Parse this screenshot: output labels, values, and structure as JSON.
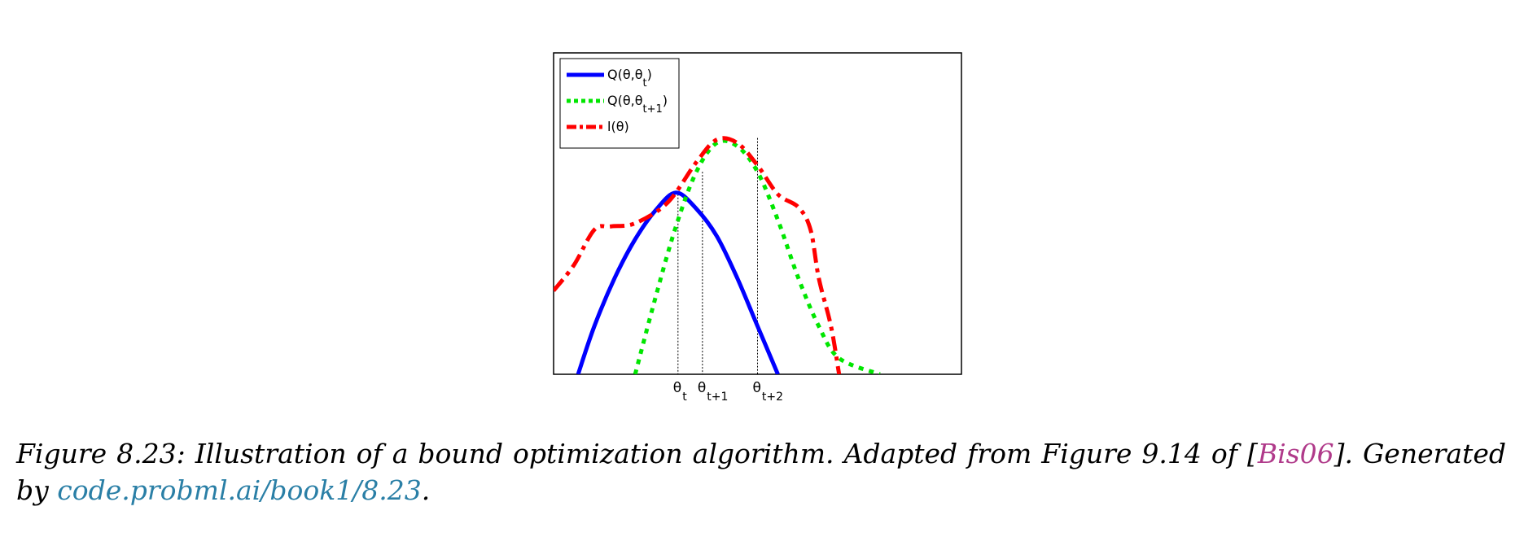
{
  "chart_data": {
    "type": "line",
    "xlabel": "",
    "ylabel": "",
    "xlim": [
      0,
      100
    ],
    "ylim": [
      0,
      100
    ],
    "grid": false,
    "legend": "top-left",
    "legend_entries": [
      {
        "series": "q_t",
        "base": "Q(θ,θ",
        "sub": "t",
        "close": ")",
        "color": "#0000ff",
        "dash": "solid"
      },
      {
        "series": "q_t1",
        "base": "Q(θ,θ",
        "sub": "t+1",
        "close": ")",
        "color": "#00e600",
        "dash": "dotted"
      },
      {
        "series": "l",
        "base": "l(θ)",
        "sub": "",
        "close": "",
        "color": "#ff0000",
        "dash": "dashdot"
      }
    ],
    "series": [
      {
        "key": "q_t",
        "color": "#0000ff",
        "dash": "solid",
        "points": [
          [
            6,
            0
          ],
          [
            10,
            15
          ],
          [
            15,
            30
          ],
          [
            20,
            42
          ],
          [
            25,
            51
          ],
          [
            30,
            56.5
          ],
          [
            35,
            51.5
          ],
          [
            40,
            43
          ],
          [
            45,
            30
          ],
          [
            50,
            15
          ],
          [
            55,
            0
          ]
        ]
      },
      {
        "key": "q_t1",
        "color": "#00e600",
        "dash": "dotted",
        "points": [
          [
            20,
            0
          ],
          [
            25,
            24
          ],
          [
            30,
            46
          ],
          [
            35,
            63
          ],
          [
            40,
            72
          ],
          [
            45,
            71
          ],
          [
            50,
            63
          ],
          [
            55,
            48
          ],
          [
            60,
            30
          ],
          [
            65,
            15
          ],
          [
            70,
            5
          ],
          [
            80,
            0
          ]
        ]
      },
      {
        "key": "l",
        "color": "#ff0000",
        "dash": "dashdot",
        "points": [
          [
            0,
            26
          ],
          [
            5,
            34
          ],
          [
            10,
            45
          ],
          [
            14,
            46
          ],
          [
            20,
            47
          ],
          [
            28,
            53.5
          ],
          [
            35,
            66
          ],
          [
            40,
            73
          ],
          [
            45,
            72
          ],
          [
            50,
            65
          ],
          [
            55,
            56
          ],
          [
            60,
            52
          ],
          [
            63,
            45
          ],
          [
            65,
            30
          ],
          [
            68,
            15
          ],
          [
            70,
            0
          ]
        ]
      }
    ],
    "markers": [
      {
        "x": 30.5,
        "ytop": 56,
        "label": "θ",
        "sub": "t"
      },
      {
        "x": 36.5,
        "ytop": 63,
        "label": "θ",
        "sub": "t+1"
      },
      {
        "x": 50,
        "ytop": 73.5,
        "label": "θ",
        "sub": "t+2"
      }
    ]
  },
  "caption": {
    "prefix": "Figure 8.23: Illustration of a bound optimization algorithm. Adapted from Figure 9.14 of [",
    "cite": "Bis06",
    "middle": "]. Generated by ",
    "link": "code.probml.ai/book1/8.23",
    "suffix": "."
  },
  "colors": {
    "citation": "#b03a8a",
    "link": "#2a7fa6"
  }
}
